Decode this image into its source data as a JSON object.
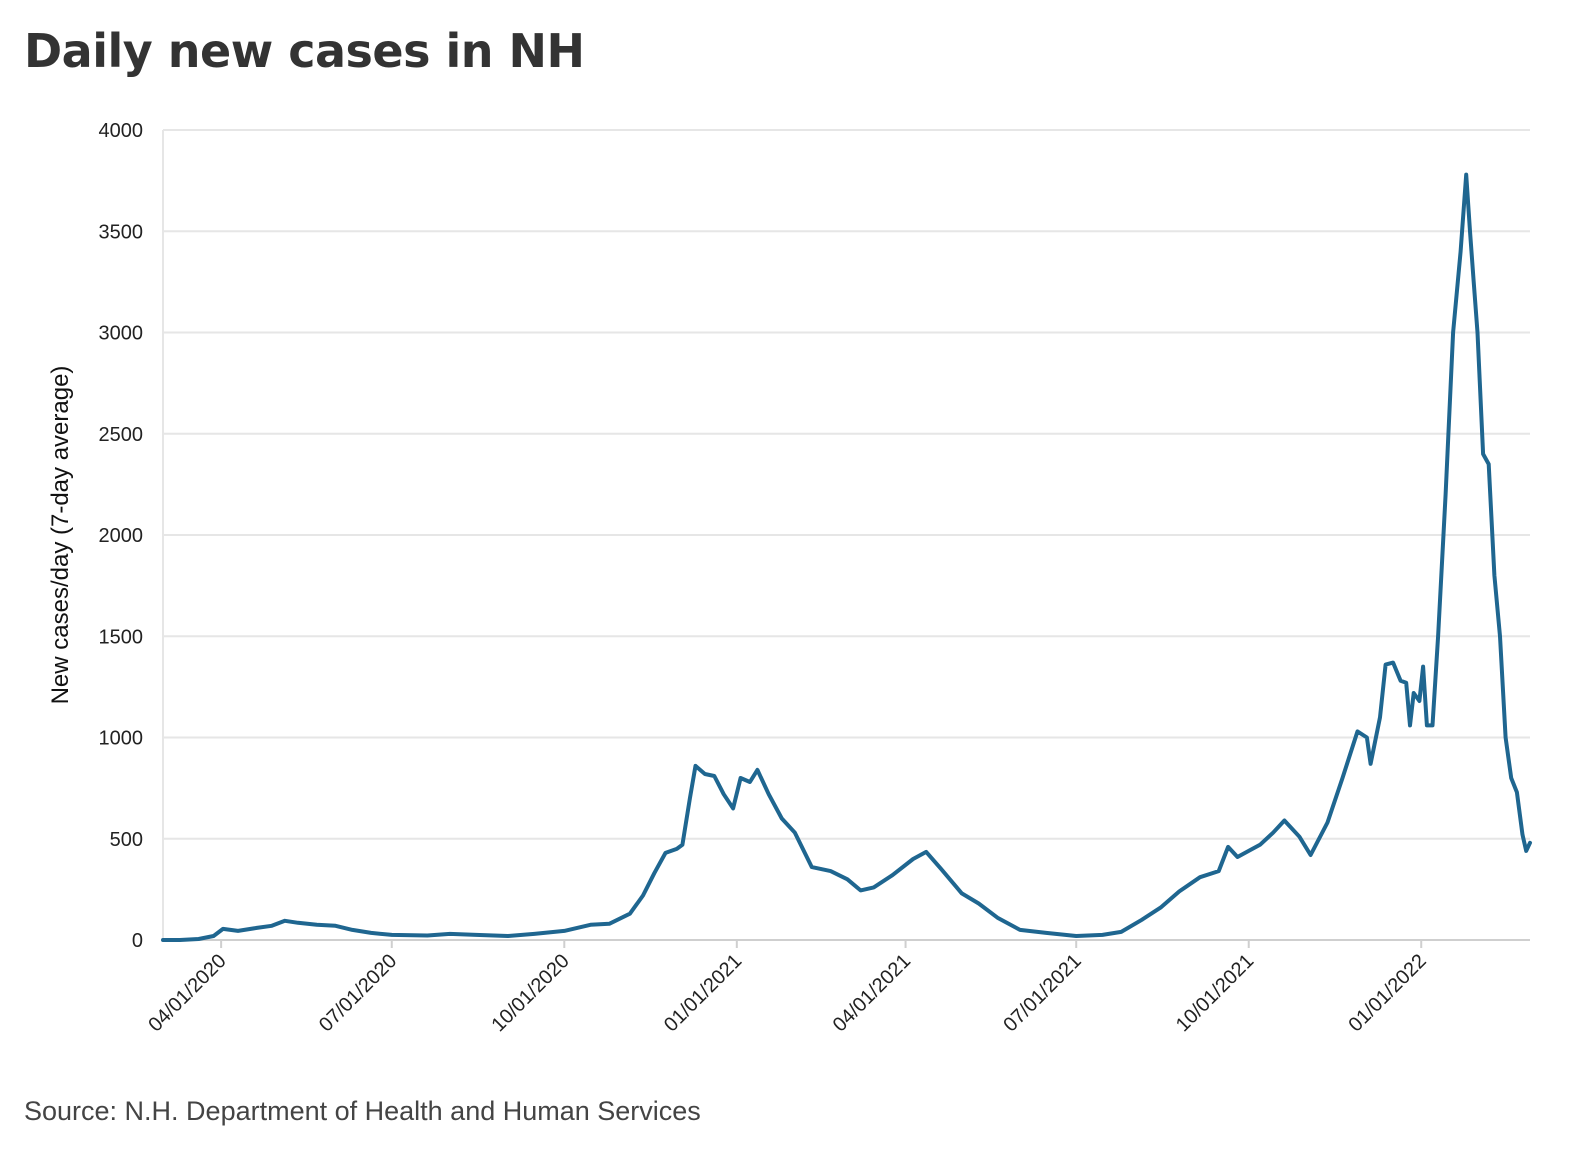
{
  "title": "Daily new cases in NH",
  "source": "Source: N.H. Department of Health and Human Services",
  "line_color": "#1f6690",
  "chart_data": {
    "type": "line",
    "title": "Daily new cases in NH",
    "ylabel": "New cases/day (7-day average)",
    "xlabel": "",
    "ylim": [
      0,
      4000
    ],
    "xlim": [
      "2020-03-01",
      "2022-02-28"
    ],
    "y_ticks": [
      0,
      500,
      1000,
      1500,
      2000,
      2500,
      3000,
      3500,
      4000
    ],
    "x_ticks": [
      {
        "date": "2020-04-01",
        "label": "04/01/2020"
      },
      {
        "date": "2020-07-01",
        "label": "07/01/2020"
      },
      {
        "date": "2020-10-01",
        "label": "10/01/2020"
      },
      {
        "date": "2021-01-01",
        "label": "01/01/2021"
      },
      {
        "date": "2021-04-01",
        "label": "04/01/2021"
      },
      {
        "date": "2021-07-01",
        "label": "07/01/2021"
      },
      {
        "date": "2021-10-01",
        "label": "10/01/2021"
      },
      {
        "date": "2022-01-01",
        "label": "01/01/2022"
      }
    ],
    "grid": true,
    "series": [
      {
        "points": [
          [
            "2020-03-01",
            0
          ],
          [
            "2020-03-10",
            0
          ],
          [
            "2020-03-20",
            5
          ],
          [
            "2020-03-28",
            20
          ],
          [
            "2020-04-02",
            55
          ],
          [
            "2020-04-10",
            45
          ],
          [
            "2020-04-20",
            60
          ],
          [
            "2020-04-28",
            70
          ],
          [
            "2020-05-05",
            95
          ],
          [
            "2020-05-12",
            85
          ],
          [
            "2020-05-22",
            75
          ],
          [
            "2020-06-01",
            70
          ],
          [
            "2020-06-10",
            50
          ],
          [
            "2020-06-20",
            35
          ],
          [
            "2020-07-01",
            25
          ],
          [
            "2020-07-20",
            22
          ],
          [
            "2020-08-01",
            30
          ],
          [
            "2020-08-15",
            25
          ],
          [
            "2020-09-01",
            20
          ],
          [
            "2020-09-15",
            30
          ],
          [
            "2020-10-01",
            45
          ],
          [
            "2020-10-15",
            75
          ],
          [
            "2020-10-25",
            80
          ],
          [
            "2020-11-05",
            130
          ],
          [
            "2020-11-12",
            220
          ],
          [
            "2020-11-18",
            330
          ],
          [
            "2020-11-24",
            430
          ],
          [
            "2020-11-30",
            450
          ],
          [
            "2020-12-03",
            470
          ],
          [
            "2020-12-07",
            700
          ],
          [
            "2020-12-10",
            860
          ],
          [
            "2020-12-15",
            820
          ],
          [
            "2020-12-20",
            810
          ],
          [
            "2020-12-25",
            720
          ],
          [
            "2020-12-30",
            650
          ],
          [
            "2021-01-03",
            800
          ],
          [
            "2021-01-08",
            780
          ],
          [
            "2021-01-12",
            840
          ],
          [
            "2021-01-18",
            720
          ],
          [
            "2021-01-25",
            600
          ],
          [
            "2021-02-01",
            530
          ],
          [
            "2021-02-10",
            360
          ],
          [
            "2021-02-20",
            340
          ],
          [
            "2021-03-01",
            300
          ],
          [
            "2021-03-08",
            245
          ],
          [
            "2021-03-15",
            260
          ],
          [
            "2021-03-25",
            320
          ],
          [
            "2021-04-05",
            400
          ],
          [
            "2021-04-12",
            435
          ],
          [
            "2021-04-20",
            350
          ],
          [
            "2021-05-01",
            230
          ],
          [
            "2021-05-10",
            180
          ],
          [
            "2021-05-20",
            110
          ],
          [
            "2021-06-01",
            50
          ],
          [
            "2021-06-15",
            35
          ],
          [
            "2021-07-01",
            20
          ],
          [
            "2021-07-15",
            25
          ],
          [
            "2021-07-25",
            40
          ],
          [
            "2021-08-05",
            100
          ],
          [
            "2021-08-15",
            160
          ],
          [
            "2021-08-25",
            240
          ],
          [
            "2021-09-05",
            310
          ],
          [
            "2021-09-15",
            340
          ],
          [
            "2021-09-20",
            460
          ],
          [
            "2021-09-25",
            410
          ],
          [
            "2021-10-01",
            440
          ],
          [
            "2021-10-07",
            470
          ],
          [
            "2021-10-14",
            530
          ],
          [
            "2021-10-20",
            590
          ],
          [
            "2021-10-28",
            510
          ],
          [
            "2021-11-03",
            420
          ],
          [
            "2021-11-12",
            580
          ],
          [
            "2021-11-20",
            800
          ],
          [
            "2021-11-28",
            1030
          ],
          [
            "2021-12-03",
            1000
          ],
          [
            "2021-12-05",
            870
          ],
          [
            "2021-12-10",
            1100
          ],
          [
            "2021-12-13",
            1360
          ],
          [
            "2021-12-17",
            1370
          ],
          [
            "2021-12-21",
            1280
          ],
          [
            "2021-12-24",
            1270
          ],
          [
            "2021-12-26",
            1060
          ],
          [
            "2021-12-28",
            1220
          ],
          [
            "2021-12-31",
            1180
          ],
          [
            "2022-01-02",
            1350
          ],
          [
            "2022-01-04",
            1060
          ],
          [
            "2022-01-07",
            1060
          ],
          [
            "2022-01-10",
            1500
          ],
          [
            "2022-01-14",
            2200
          ],
          [
            "2022-01-18",
            3000
          ],
          [
            "2022-01-22",
            3400
          ],
          [
            "2022-01-25",
            3780
          ],
          [
            "2022-01-27",
            3500
          ],
          [
            "2022-01-29",
            3250
          ],
          [
            "2022-01-31",
            3000
          ],
          [
            "2022-02-03",
            2400
          ],
          [
            "2022-02-06",
            2350
          ],
          [
            "2022-02-09",
            1800
          ],
          [
            "2022-02-12",
            1500
          ],
          [
            "2022-02-15",
            1000
          ],
          [
            "2022-02-18",
            800
          ],
          [
            "2022-02-21",
            730
          ],
          [
            "2022-02-24",
            520
          ],
          [
            "2022-02-26",
            440
          ],
          [
            "2022-02-28",
            480
          ]
        ]
      }
    ]
  }
}
